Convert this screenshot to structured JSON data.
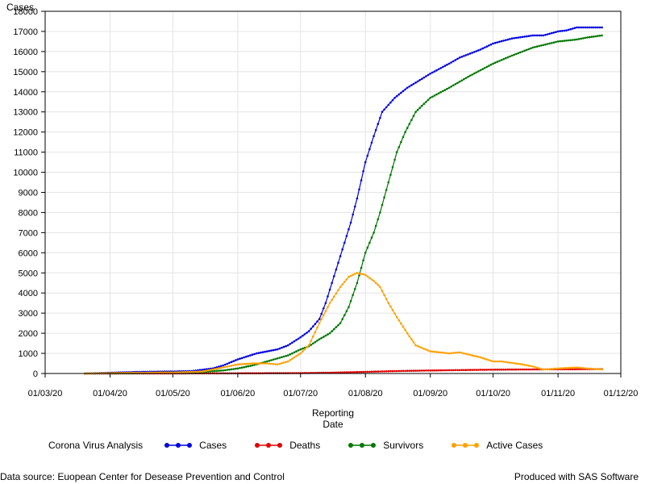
{
  "chart_data": {
    "type": "line",
    "ylabel": "Cases",
    "xlabel_line1": "Reporting",
    "xlabel_line2": "Date",
    "ylim": [
      0,
      18000
    ],
    "yticks": [
      0,
      1000,
      2000,
      3000,
      4000,
      5000,
      6000,
      7000,
      8000,
      9000,
      10000,
      11000,
      12000,
      13000,
      14000,
      15000,
      16000,
      17000,
      18000
    ],
    "xlim": [
      "2020-03-01",
      "2020-12-01"
    ],
    "xticks": [
      {
        "date": "2020-03-01",
        "label": "01/03/20"
      },
      {
        "date": "2020-04-01",
        "label": "01/04/20"
      },
      {
        "date": "2020-05-01",
        "label": "01/05/20"
      },
      {
        "date": "2020-06-01",
        "label": "01/06/20"
      },
      {
        "date": "2020-07-01",
        "label": "01/07/20"
      },
      {
        "date": "2020-08-01",
        "label": "01/08/20"
      },
      {
        "date": "2020-09-01",
        "label": "01/09/20"
      },
      {
        "date": "2020-10-01",
        "label": "01/10/20"
      },
      {
        "date": "2020-11-01",
        "label": "01/11/20"
      },
      {
        "date": "2020-12-01",
        "label": "01/12/20"
      }
    ],
    "grid": true,
    "legend_position": "bottom",
    "legend_title": "Corona Virus Analysis",
    "series": [
      {
        "name": "Cases",
        "color": "#0000dd",
        "points": [
          [
            "2020-03-20",
            0
          ],
          [
            "2020-04-01",
            40
          ],
          [
            "2020-04-15",
            80
          ],
          [
            "2020-05-01",
            100
          ],
          [
            "2020-05-10",
            120
          ],
          [
            "2020-05-20",
            250
          ],
          [
            "2020-05-25",
            400
          ],
          [
            "2020-06-01",
            700
          ],
          [
            "2020-06-10",
            1000
          ],
          [
            "2020-06-20",
            1200
          ],
          [
            "2020-06-25",
            1400
          ],
          [
            "2020-07-01",
            1800
          ],
          [
            "2020-07-05",
            2100
          ],
          [
            "2020-07-10",
            2700
          ],
          [
            "2020-07-13",
            3500
          ],
          [
            "2020-07-16",
            4500
          ],
          [
            "2020-07-19",
            5500
          ],
          [
            "2020-07-22",
            6500
          ],
          [
            "2020-07-25",
            7500
          ],
          [
            "2020-07-28",
            8700
          ],
          [
            "2020-08-01",
            10500
          ],
          [
            "2020-08-05",
            11800
          ],
          [
            "2020-08-09",
            13000
          ],
          [
            "2020-08-15",
            13700
          ],
          [
            "2020-08-21",
            14200
          ],
          [
            "2020-09-01",
            14900
          ],
          [
            "2020-09-10",
            15400
          ],
          [
            "2020-09-15",
            15700
          ],
          [
            "2020-09-25",
            16100
          ],
          [
            "2020-10-01",
            16400
          ],
          [
            "2020-10-10",
            16650
          ],
          [
            "2020-10-20",
            16800
          ],
          [
            "2020-10-25",
            16800
          ],
          [
            "2020-11-01",
            17000
          ],
          [
            "2020-11-05",
            17050
          ],
          [
            "2020-11-10",
            17200
          ],
          [
            "2020-11-22",
            17200
          ]
        ]
      },
      {
        "name": "Deaths",
        "color": "#e00000",
        "points": [
          [
            "2020-03-20",
            0
          ],
          [
            "2020-05-01",
            5
          ],
          [
            "2020-06-01",
            10
          ],
          [
            "2020-07-01",
            20
          ],
          [
            "2020-07-15",
            40
          ],
          [
            "2020-08-01",
            80
          ],
          [
            "2020-08-15",
            120
          ],
          [
            "2020-09-01",
            150
          ],
          [
            "2020-09-15",
            170
          ],
          [
            "2020-10-01",
            190
          ],
          [
            "2020-10-15",
            200
          ],
          [
            "2020-11-01",
            210
          ],
          [
            "2020-11-22",
            220
          ]
        ]
      },
      {
        "name": "Survivors",
        "color": "#007700",
        "points": [
          [
            "2020-03-20",
            0
          ],
          [
            "2020-04-15",
            20
          ],
          [
            "2020-05-01",
            50
          ],
          [
            "2020-05-15",
            80
          ],
          [
            "2020-05-25",
            150
          ],
          [
            "2020-06-01",
            250
          ],
          [
            "2020-06-08",
            400
          ],
          [
            "2020-06-15",
            600
          ],
          [
            "2020-06-25",
            900
          ],
          [
            "2020-07-01",
            1200
          ],
          [
            "2020-07-05",
            1350
          ],
          [
            "2020-07-10",
            1700
          ],
          [
            "2020-07-15",
            2000
          ],
          [
            "2020-07-20",
            2500
          ],
          [
            "2020-07-24",
            3300
          ],
          [
            "2020-07-28",
            4500
          ],
          [
            "2020-08-01",
            6000
          ],
          [
            "2020-08-05",
            7000
          ],
          [
            "2020-08-08",
            8000
          ],
          [
            "2020-08-12",
            9500
          ],
          [
            "2020-08-16",
            11000
          ],
          [
            "2020-08-20",
            12000
          ],
          [
            "2020-08-25",
            13000
          ],
          [
            "2020-09-01",
            13700
          ],
          [
            "2020-09-10",
            14200
          ],
          [
            "2020-09-20",
            14800
          ],
          [
            "2020-10-01",
            15400
          ],
          [
            "2020-10-10",
            15800
          ],
          [
            "2020-10-20",
            16200
          ],
          [
            "2020-11-01",
            16500
          ],
          [
            "2020-11-10",
            16600
          ],
          [
            "2020-11-15",
            16700
          ],
          [
            "2020-11-22",
            16800
          ]
        ]
      },
      {
        "name": "Active Cases",
        "color": "#ffa000",
        "points": [
          [
            "2020-03-20",
            0
          ],
          [
            "2020-04-01",
            20
          ],
          [
            "2020-04-15",
            40
          ],
          [
            "2020-05-01",
            50
          ],
          [
            "2020-05-15",
            100
          ],
          [
            "2020-05-25",
            300
          ],
          [
            "2020-06-01",
            450
          ],
          [
            "2020-06-08",
            500
          ],
          [
            "2020-06-15",
            500
          ],
          [
            "2020-06-20",
            450
          ],
          [
            "2020-06-25",
            600
          ],
          [
            "2020-07-01",
            1000
          ],
          [
            "2020-07-05",
            1400
          ],
          [
            "2020-07-10",
            2500
          ],
          [
            "2020-07-15",
            3500
          ],
          [
            "2020-07-20",
            4300
          ],
          [
            "2020-07-24",
            4800
          ],
          [
            "2020-07-28",
            5000
          ],
          [
            "2020-08-01",
            4900
          ],
          [
            "2020-08-05",
            4600
          ],
          [
            "2020-08-08",
            4300
          ],
          [
            "2020-08-12",
            3500
          ],
          [
            "2020-08-16",
            2800
          ],
          [
            "2020-08-21",
            2000
          ],
          [
            "2020-08-25",
            1400
          ],
          [
            "2020-09-01",
            1100
          ],
          [
            "2020-09-10",
            1000
          ],
          [
            "2020-09-15",
            1050
          ],
          [
            "2020-09-25",
            800
          ],
          [
            "2020-10-01",
            600
          ],
          [
            "2020-10-05",
            600
          ],
          [
            "2020-10-15",
            450
          ],
          [
            "2020-10-20",
            350
          ],
          [
            "2020-10-25",
            200
          ],
          [
            "2020-11-01",
            250
          ],
          [
            "2020-11-10",
            300
          ],
          [
            "2020-11-15",
            250
          ],
          [
            "2020-11-22",
            200
          ]
        ]
      }
    ]
  },
  "footnote_left": "Data source: Euopean Center for Desease Prevention and Control",
  "footnote_right": "Produced with SAS Software"
}
